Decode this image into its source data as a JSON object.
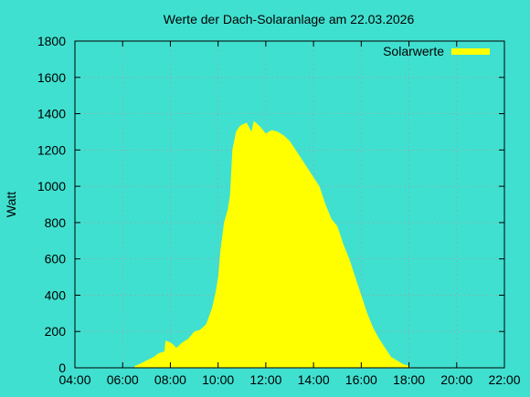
{
  "chart_data": {
    "type": "area",
    "title": "Werte der Dach-Solaranlage am 22.03.2026",
    "xlabel": "",
    "ylabel": "Watt",
    "xlim": [
      4,
      22
    ],
    "ylim": [
      0,
      1800
    ],
    "x_ticks": [
      {
        "value": 4,
        "label": "04:00"
      },
      {
        "value": 6,
        "label": "06:00"
      },
      {
        "value": 8,
        "label": "08:00"
      },
      {
        "value": 10,
        "label": "10:00"
      },
      {
        "value": 12,
        "label": "12:00"
      },
      {
        "value": 14,
        "label": "14:00"
      },
      {
        "value": 16,
        "label": "16:00"
      },
      {
        "value": 18,
        "label": "18:00"
      },
      {
        "value": 20,
        "label": "20:00"
      },
      {
        "value": 22,
        "label": "22:00"
      }
    ],
    "y_ticks": [
      0,
      200,
      400,
      600,
      800,
      1000,
      1200,
      1400,
      1600,
      1800
    ],
    "grid": true,
    "legend": "top-right",
    "colors": {
      "background": "#40e0d0",
      "series": "#ffff00"
    },
    "series": [
      {
        "name": "Solarwerte",
        "x": [
          6.5,
          6.7,
          7.0,
          7.3,
          7.5,
          7.75,
          7.8,
          8.0,
          8.1,
          8.25,
          8.5,
          8.75,
          9.0,
          9.25,
          9.5,
          9.75,
          9.9,
          10.0,
          10.1,
          10.25,
          10.4,
          10.5,
          10.6,
          10.75,
          10.9,
          11.0,
          11.2,
          11.4,
          11.5,
          11.75,
          12.0,
          12.25,
          12.5,
          12.75,
          13.0,
          13.25,
          13.5,
          13.75,
          14.0,
          14.25,
          14.5,
          14.75,
          15.0,
          15.25,
          15.5,
          15.75,
          16.0,
          16.25,
          16.5,
          16.75,
          17.0,
          17.25,
          17.5,
          17.75,
          18.0,
          18.1
        ],
        "y": [
          10,
          20,
          40,
          60,
          80,
          90,
          150,
          140,
          130,
          110,
          140,
          160,
          200,
          210,
          240,
          330,
          420,
          500,
          650,
          800,
          870,
          950,
          1200,
          1300,
          1330,
          1340,
          1350,
          1300,
          1360,
          1330,
          1290,
          1310,
          1300,
          1280,
          1250,
          1200,
          1150,
          1100,
          1050,
          1000,
          900,
          820,
          780,
          680,
          600,
          500,
          400,
          300,
          220,
          160,
          110,
          60,
          40,
          20,
          10,
          0
        ]
      }
    ]
  }
}
